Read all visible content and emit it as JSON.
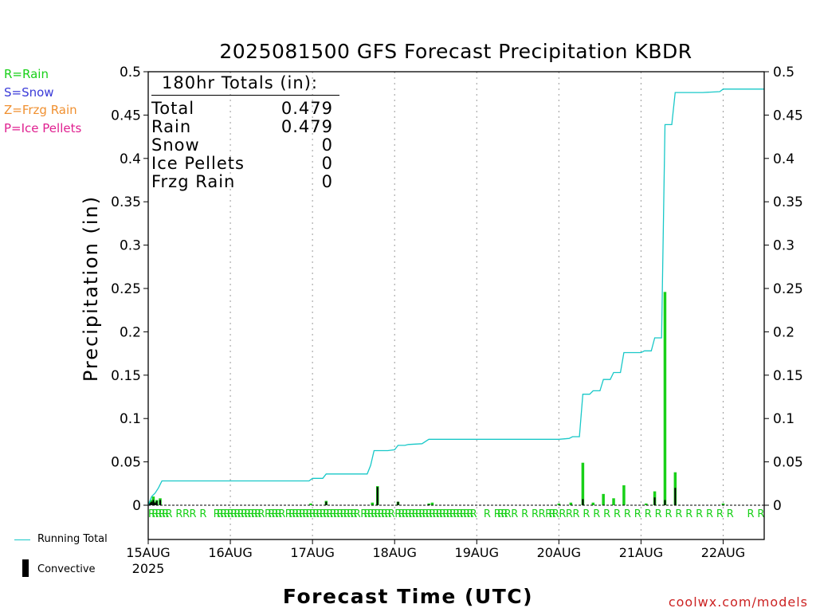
{
  "title": "2025081500 GFS Forecast Precipitation KBDR",
  "source": "coolwx.com/models",
  "legend_types": [
    {
      "code": "R",
      "label": "R=Rain",
      "color": "#18d018"
    },
    {
      "code": "S",
      "label": "S=Snow",
      "color": "#3a3ad8"
    },
    {
      "code": "Z",
      "label": "Z=Frzg Rain",
      "color": "#f09030"
    },
    {
      "code": "P",
      "label": "P=Ice Pellets",
      "color": "#e02090"
    }
  ],
  "totals": {
    "header": "180hr Totals (in):",
    "rows": [
      {
        "label": "Total",
        "value": "0.479"
      },
      {
        "label": "Rain",
        "value": "0.479"
      },
      {
        "label": "Snow",
        "value": "0"
      },
      {
        "label": "Ice Pellets",
        "value": "0"
      },
      {
        "label": "Frzg Rain",
        "value": "0"
      }
    ]
  },
  "legend_bottom": {
    "running_total": "Running Total",
    "convective": "Convective"
  },
  "chart_data": {
    "type": "bar",
    "title": "2025081500 GFS Forecast Precipitation KBDR",
    "xlabel": "Forecast Time (UTC)",
    "ylabel": "Precipitation (in)",
    "ylim": [
      0,
      0.5
    ],
    "xlim_hours": [
      0,
      180
    ],
    "y_ticks": [
      0,
      0.05,
      0.1,
      0.15,
      0.2,
      0.25,
      0.3,
      0.35,
      0.4,
      0.45,
      0.5
    ],
    "y_tick_labels": [
      "0",
      "0.05",
      "0.1",
      "0.15",
      "0.2",
      "0.25",
      "0.3",
      "0.35",
      "0.4",
      "0.45",
      "0.5"
    ],
    "x_ticks": [
      {
        "hour": 0,
        "label": "15AUG",
        "sub": "2025"
      },
      {
        "hour": 24,
        "label": "16AUG"
      },
      {
        "hour": 48,
        "label": "17AUG"
      },
      {
        "hour": 72,
        "label": "18AUG"
      },
      {
        "hour": 96,
        "label": "19AUG"
      },
      {
        "hour": 120,
        "label": "20AUG"
      },
      {
        "hour": 144,
        "label": "21AUG"
      },
      {
        "hour": 168,
        "label": "22AUG"
      }
    ],
    "grid": "vertical dotted",
    "series": [
      {
        "name": "Running Total",
        "kind": "line",
        "color": "#18c8c8",
        "points": [
          [
            0,
            0
          ],
          [
            1,
            0.01
          ],
          [
            2,
            0.014
          ],
          [
            3,
            0.02
          ],
          [
            4,
            0.028
          ],
          [
            46,
            0.028
          ],
          [
            47,
            0.028
          ],
          [
            48,
            0.031
          ],
          [
            51,
            0.031
          ],
          [
            52,
            0.036
          ],
          [
            64,
            0.036
          ],
          [
            65,
            0.046
          ],
          [
            66,
            0.063
          ],
          [
            70,
            0.063
          ],
          [
            72,
            0.064
          ],
          [
            73,
            0.069
          ],
          [
            75,
            0.069
          ],
          [
            76,
            0.07
          ],
          [
            80,
            0.071
          ],
          [
            82,
            0.076
          ],
          [
            96,
            0.076
          ],
          [
            120,
            0.076
          ],
          [
            123,
            0.077
          ],
          [
            124,
            0.079
          ],
          [
            126,
            0.079
          ],
          [
            127,
            0.128
          ],
          [
            129,
            0.128
          ],
          [
            130,
            0.132
          ],
          [
            132,
            0.132
          ],
          [
            133,
            0.145
          ],
          [
            135,
            0.145
          ],
          [
            136,
            0.153
          ],
          [
            138,
            0.153
          ],
          [
            139,
            0.176
          ],
          [
            144,
            0.176
          ],
          [
            145,
            0.178
          ],
          [
            147,
            0.178
          ],
          [
            148,
            0.193
          ],
          [
            150,
            0.193
          ],
          [
            151,
            0.439
          ],
          [
            153,
            0.439
          ],
          [
            154,
            0.476
          ],
          [
            162,
            0.476
          ],
          [
            167,
            0.477
          ],
          [
            168,
            0.48
          ],
          [
            180,
            0.48
          ]
        ]
      },
      {
        "name": "Rain",
        "kind": "bar",
        "color": "#18d018",
        "bars": [
          [
            0.5,
            0.004
          ],
          [
            1,
            0.006
          ],
          [
            1.5,
            0.01
          ],
          [
            2,
            0.004
          ],
          [
            2.5,
            0.006
          ],
          [
            3.5,
            0.008
          ],
          [
            47.5,
            0.002
          ],
          [
            52,
            0.005
          ],
          [
            65.5,
            0.003
          ],
          [
            67,
            0.022
          ],
          [
            73,
            0.004
          ],
          [
            82,
            0.002
          ],
          [
            83,
            0.003
          ],
          [
            120,
            0.002
          ],
          [
            123.5,
            0.003
          ],
          [
            127,
            0.049
          ],
          [
            130,
            0.003
          ],
          [
            133,
            0.013
          ],
          [
            136,
            0.008
          ],
          [
            139,
            0.023
          ],
          [
            145.5,
            0.002
          ],
          [
            148,
            0.016
          ],
          [
            151,
            0.246
          ],
          [
            154,
            0.038
          ],
          [
            168,
            0.002
          ]
        ]
      },
      {
        "name": "Convective",
        "kind": "bar",
        "color": "#000000",
        "bars": [
          [
            0.5,
            0.003
          ],
          [
            1,
            0.004
          ],
          [
            1.5,
            0.006
          ],
          [
            2,
            0.003
          ],
          [
            2.5,
            0.005
          ],
          [
            3.5,
            0.006
          ],
          [
            52,
            0.004
          ],
          [
            67,
            0.021
          ],
          [
            73,
            0.004
          ],
          [
            82,
            0.001
          ],
          [
            127,
            0.007
          ],
          [
            148,
            0.009
          ],
          [
            151,
            0.006
          ],
          [
            154,
            0.02
          ]
        ]
      }
    ],
    "type_markers": {
      "label": "R",
      "hours": [
        0,
        1,
        2,
        3,
        4,
        5,
        8,
        10,
        12,
        15,
        19,
        20,
        21,
        22,
        23,
        24,
        25,
        26,
        27,
        28,
        29,
        30,
        31,
        32,
        34,
        35,
        36,
        37,
        38,
        40,
        41,
        42,
        43,
        44,
        45,
        46,
        47,
        48,
        49,
        50,
        51,
        52,
        53,
        54,
        55,
        56,
        57,
        58,
        59,
        60,
        62,
        63,
        64,
        65,
        66,
        67,
        68,
        69,
        70,
        72,
        73,
        74,
        75,
        76,
        77,
        78,
        79,
        80,
        81,
        82,
        83,
        84,
        85,
        86,
        87,
        88,
        89,
        90,
        91,
        92,
        93,
        94,
        98,
        101,
        102,
        103,
        104,
        106,
        109,
        112,
        114,
        116,
        117,
        118,
        120,
        122,
        124,
        127,
        130,
        133,
        136,
        139,
        142,
        145,
        148,
        151,
        154,
        157,
        160,
        163,
        166,
        169,
        175,
        178
      ]
    }
  }
}
